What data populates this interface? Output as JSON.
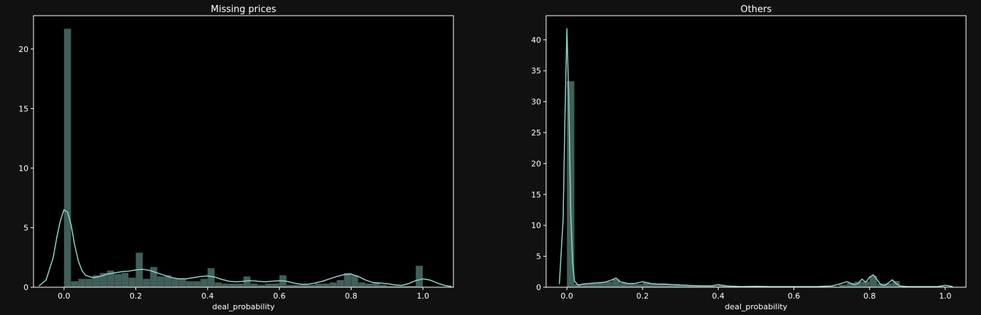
{
  "figure": {
    "background": "#111111",
    "axes_background": "#000000",
    "bar_color": "#8dd3c7",
    "bar_opacity": 0.45,
    "kde_color": "#8dd3c7",
    "text_color": "#ffffff"
  },
  "chart_data": [
    {
      "type": "bar",
      "title": "Missing prices",
      "xlabel": "deal_probability",
      "ylabel": "",
      "xlim": [
        -0.085,
        1.085
      ],
      "ylim": [
        0,
        22.8
      ],
      "xticks": [
        0.0,
        0.2,
        0.4,
        0.6,
        0.8,
        1.0
      ],
      "xtick_labels": [
        "0.0",
        "0.2",
        "0.4",
        "0.6",
        "0.8",
        "1.0"
      ],
      "yticks": [
        0,
        5,
        10,
        15,
        20
      ],
      "ytick_labels": [
        "0",
        "5",
        "10",
        "15",
        "20"
      ],
      "grid": false,
      "histogram": {
        "bin_width": 0.02,
        "x": [
          0.0,
          0.02,
          0.04,
          0.06,
          0.08,
          0.1,
          0.12,
          0.14,
          0.16,
          0.18,
          0.2,
          0.22,
          0.24,
          0.26,
          0.28,
          0.3,
          0.32,
          0.34,
          0.36,
          0.38,
          0.4,
          0.42,
          0.44,
          0.46,
          0.48,
          0.5,
          0.52,
          0.54,
          0.56,
          0.58,
          0.6,
          0.62,
          0.64,
          0.66,
          0.68,
          0.7,
          0.72,
          0.74,
          0.76,
          0.78,
          0.8,
          0.82,
          0.84,
          0.86,
          0.88,
          0.9,
          0.92,
          0.94,
          0.96,
          0.98
        ],
        "values": [
          21.7,
          0.5,
          0.7,
          0.7,
          1.0,
          1.2,
          1.4,
          1.1,
          1.2,
          0.8,
          2.9,
          0.7,
          1.7,
          0.9,
          1.0,
          0.7,
          0.7,
          0.5,
          0.5,
          0.7,
          1.6,
          0.4,
          0.3,
          0.3,
          0.3,
          0.9,
          0.3,
          0.2,
          0.3,
          0.3,
          1.0,
          0.2,
          0.2,
          0.2,
          0.2,
          0.3,
          0.3,
          0.4,
          0.6,
          1.2,
          1.0,
          0.4,
          0.3,
          0.4,
          0.2,
          0.1,
          0.1,
          0.1,
          0.1,
          1.8
        ]
      },
      "kde": {
        "x": [
          -0.07,
          -0.05,
          -0.03,
          -0.02,
          -0.01,
          0.0,
          0.01,
          0.02,
          0.03,
          0.04,
          0.05,
          0.06,
          0.08,
          0.1,
          0.12,
          0.14,
          0.16,
          0.18,
          0.2,
          0.22,
          0.24,
          0.26,
          0.28,
          0.3,
          0.32,
          0.34,
          0.36,
          0.38,
          0.4,
          0.42,
          0.44,
          0.46,
          0.48,
          0.5,
          0.52,
          0.54,
          0.56,
          0.58,
          0.6,
          0.62,
          0.64,
          0.66,
          0.68,
          0.7,
          0.72,
          0.74,
          0.76,
          0.78,
          0.8,
          0.82,
          0.84,
          0.86,
          0.88,
          0.9,
          0.92,
          0.94,
          0.96,
          0.98,
          1.0,
          1.02,
          1.04,
          1.06,
          1.08
        ],
        "y": [
          0.1,
          0.6,
          2.5,
          4.2,
          5.6,
          6.5,
          6.3,
          5.2,
          3.5,
          2.2,
          1.4,
          1.0,
          0.8,
          0.9,
          1.1,
          1.2,
          1.3,
          1.35,
          1.45,
          1.5,
          1.4,
          1.2,
          1.0,
          0.8,
          0.7,
          0.7,
          0.8,
          0.9,
          0.95,
          0.85,
          0.65,
          0.5,
          0.45,
          0.5,
          0.55,
          0.5,
          0.45,
          0.5,
          0.55,
          0.5,
          0.35,
          0.25,
          0.25,
          0.35,
          0.5,
          0.7,
          0.9,
          1.05,
          1.1,
          0.9,
          0.6,
          0.4,
          0.35,
          0.3,
          0.2,
          0.15,
          0.3,
          0.55,
          0.7,
          0.6,
          0.35,
          0.15,
          0.05
        ]
      }
    },
    {
      "type": "bar",
      "title": "Others",
      "xlabel": "deal_probability",
      "ylabel": "",
      "xlim": [
        -0.055,
        1.055
      ],
      "ylim": [
        0,
        43.9
      ],
      "xticks": [
        0.0,
        0.2,
        0.4,
        0.6,
        0.8,
        1.0
      ],
      "xtick_labels": [
        "0.0",
        "0.2",
        "0.4",
        "0.6",
        "0.8",
        "1.0"
      ],
      "yticks": [
        0,
        5,
        10,
        15,
        20,
        25,
        30,
        35,
        40
      ],
      "ytick_labels": [
        "0",
        "5",
        "10",
        "15",
        "20",
        "25",
        "30",
        "35",
        "40"
      ],
      "grid": false,
      "histogram": {
        "bin_width": 0.02,
        "x": [
          0.0,
          0.02,
          0.04,
          0.06,
          0.08,
          0.1,
          0.12,
          0.14,
          0.16,
          0.18,
          0.2,
          0.22,
          0.24,
          0.26,
          0.28,
          0.3,
          0.32,
          0.34,
          0.36,
          0.38,
          0.4,
          0.42,
          0.44,
          0.46,
          0.48,
          0.5,
          0.52,
          0.54,
          0.56,
          0.58,
          0.6,
          0.62,
          0.64,
          0.66,
          0.68,
          0.7,
          0.72,
          0.74,
          0.76,
          0.78,
          0.8,
          0.82,
          0.84,
          0.86,
          0.88,
          0.9,
          0.92,
          0.94,
          0.96,
          0.98
        ],
        "values": [
          33.3,
          0.5,
          0.5,
          0.6,
          0.7,
          0.9,
          1.3,
          0.7,
          0.5,
          0.5,
          0.8,
          0.5,
          0.6,
          0.5,
          0.5,
          0.4,
          0.3,
          0.3,
          0.3,
          0.2,
          0.4,
          0.2,
          0.1,
          0.1,
          0.1,
          0.1,
          0.1,
          0.1,
          0.1,
          0.1,
          0.1,
          0.1,
          0.1,
          0.1,
          0.1,
          0.1,
          0.4,
          0.7,
          0.9,
          0.9,
          1.8,
          0.6,
          0.6,
          1.0,
          0.1,
          0.1,
          0.1,
          0.1,
          0.1,
          0.1
        ]
      },
      "kde": {
        "x": [
          -0.02,
          -0.01,
          -0.005,
          0.0,
          0.005,
          0.01,
          0.015,
          0.02,
          0.03,
          0.04,
          0.06,
          0.08,
          0.1,
          0.12,
          0.13,
          0.14,
          0.16,
          0.18,
          0.2,
          0.22,
          0.24,
          0.26,
          0.28,
          0.3,
          0.34,
          0.38,
          0.4,
          0.42,
          0.46,
          0.5,
          0.54,
          0.58,
          0.62,
          0.66,
          0.7,
          0.72,
          0.74,
          0.76,
          0.77,
          0.78,
          0.79,
          0.8,
          0.81,
          0.82,
          0.83,
          0.84,
          0.85,
          0.86,
          0.87,
          0.88,
          0.9,
          0.94,
          0.98,
          1.0,
          1.01,
          1.02
        ],
        "y": [
          0.5,
          11.0,
          28.0,
          41.8,
          30.0,
          12.0,
          4.0,
          1.0,
          0.3,
          0.5,
          0.6,
          0.7,
          0.8,
          1.2,
          1.5,
          0.9,
          0.6,
          0.6,
          0.9,
          0.6,
          0.5,
          0.5,
          0.4,
          0.35,
          0.25,
          0.2,
          0.4,
          0.2,
          0.1,
          0.15,
          0.1,
          0.1,
          0.1,
          0.1,
          0.2,
          0.5,
          0.9,
          0.4,
          0.6,
          1.3,
          0.8,
          1.6,
          2.0,
          1.2,
          0.4,
          0.3,
          0.7,
          1.2,
          0.6,
          0.2,
          0.1,
          0.1,
          0.1,
          0.3,
          0.2,
          0.1
        ]
      }
    }
  ]
}
